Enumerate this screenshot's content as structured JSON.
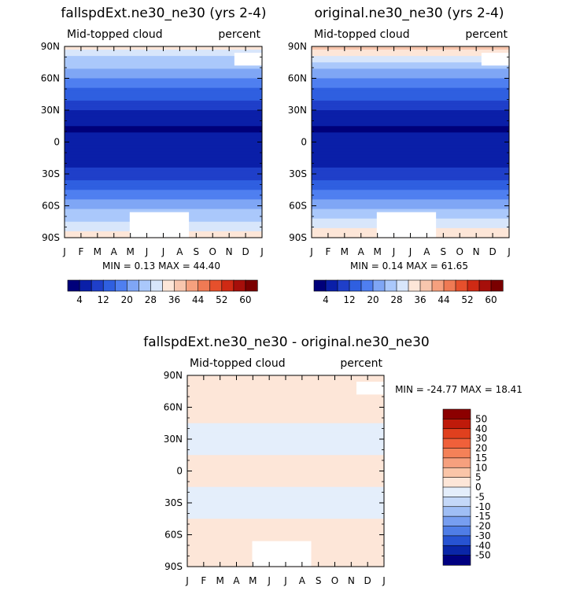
{
  "chart_data": [
    {
      "type": "heatmap",
      "id": "left",
      "title": "fallspdExt.ne30_ne30 (yrs 2-4)",
      "subtitle_left": "Mid-topped cloud",
      "subtitle_right": "percent",
      "x_ticks": [
        "J",
        "F",
        "M",
        "A",
        "M",
        "J",
        "J",
        "A",
        "S",
        "O",
        "N",
        "D",
        "J"
      ],
      "y_ticks": [
        "90N",
        "60N",
        "30N",
        "0",
        "30S",
        "60S",
        "90S"
      ],
      "ylim": [
        -90,
        90
      ],
      "stats": "MIN =    0.13 MAX =   44.40",
      "colorbar_labels": [
        "4",
        "12",
        "20",
        "28",
        "36",
        "44",
        "52",
        "60"
      ],
      "colorbar_colors": [
        "#00007a",
        "#0a1fa8",
        "#1f3fc9",
        "#2f5fe0",
        "#4f7ff0",
        "#7fa6f5",
        "#aac8fb",
        "#d8e6fb",
        "#fde6d8",
        "#f8c6ae",
        "#f6a07e",
        "#ef7a54",
        "#e6502c",
        "#cf2a14",
        "#a60f0a",
        "#7a0000"
      ],
      "band_profile": [
        {
          "lat": 90,
          "value": 34
        },
        {
          "lat": 80,
          "value": 28
        },
        {
          "lat": 70,
          "value": 24
        },
        {
          "lat": 60,
          "value": 20
        },
        {
          "lat": 50,
          "value": 15
        },
        {
          "lat": 40,
          "value": 12
        },
        {
          "lat": 30,
          "value": 8
        },
        {
          "lat": 20,
          "value": 5
        },
        {
          "lat": 10,
          "value": 3
        },
        {
          "lat": 0,
          "value": 7
        },
        {
          "lat": -10,
          "value": 8
        },
        {
          "lat": -20,
          "value": 6
        },
        {
          "lat": -30,
          "value": 10
        },
        {
          "lat": -45,
          "value": 16
        },
        {
          "lat": -60,
          "value": 23
        },
        {
          "lat": -75,
          "value": 28
        },
        {
          "lat": -90,
          "value": 34
        }
      ]
    },
    {
      "type": "heatmap",
      "id": "right",
      "title": "original.ne30_ne30 (yrs 2-4)",
      "subtitle_left": "Mid-topped cloud",
      "subtitle_right": "percent",
      "x_ticks": [
        "J",
        "F",
        "M",
        "A",
        "M",
        "J",
        "J",
        "A",
        "S",
        "O",
        "N",
        "D",
        "J"
      ],
      "y_ticks": [
        "90N",
        "60N",
        "30N",
        "0",
        "30S",
        "60S",
        "90S"
      ],
      "ylim": [
        -90,
        90
      ],
      "stats": "MIN =    0.14 MAX =   61.65",
      "colorbar_labels": [
        "4",
        "12",
        "20",
        "28",
        "36",
        "44",
        "52",
        "60"
      ],
      "colorbar_colors": [
        "#00007a",
        "#0a1fa8",
        "#1f3fc9",
        "#2f5fe0",
        "#4f7ff0",
        "#7fa6f5",
        "#aac8fb",
        "#d8e6fb",
        "#fde6d8",
        "#f8c6ae",
        "#f6a07e",
        "#ef7a54",
        "#e6502c",
        "#cf2a14",
        "#a60f0a",
        "#7a0000"
      ],
      "band_profile": [
        {
          "lat": 90,
          "value": 40
        },
        {
          "lat": 80,
          "value": 30
        },
        {
          "lat": 70,
          "value": 25
        },
        {
          "lat": 60,
          "value": 20
        },
        {
          "lat": 50,
          "value": 15
        },
        {
          "lat": 40,
          "value": 12
        },
        {
          "lat": 30,
          "value": 8
        },
        {
          "lat": 20,
          "value": 5
        },
        {
          "lat": 10,
          "value": 3
        },
        {
          "lat": 0,
          "value": 7
        },
        {
          "lat": -10,
          "value": 8
        },
        {
          "lat": -20,
          "value": 6
        },
        {
          "lat": -30,
          "value": 10
        },
        {
          "lat": -45,
          "value": 16
        },
        {
          "lat": -60,
          "value": 23
        },
        {
          "lat": -75,
          "value": 29
        },
        {
          "lat": -90,
          "value": 35
        }
      ]
    },
    {
      "type": "heatmap",
      "id": "diff",
      "title": "fallspdExt.ne30_ne30 - original.ne30_ne30",
      "subtitle_left": "Mid-topped cloud",
      "subtitle_right": "percent",
      "x_ticks": [
        "J",
        "F",
        "M",
        "A",
        "M",
        "J",
        "J",
        "A",
        "S",
        "O",
        "N",
        "D",
        "J"
      ],
      "y_ticks": [
        "90N",
        "60N",
        "30N",
        "0",
        "30S",
        "60S",
        "90S"
      ],
      "ylim": [
        -90,
        90
      ],
      "stats": "MIN = -24.77 MAX =  18.41",
      "colorbar_labels": [
        "50",
        "40",
        "30",
        "20",
        "15",
        "10",
        "5",
        "0",
        "-5",
        "-10",
        "-15",
        "-20",
        "-30",
        "-40",
        "-50"
      ],
      "colorbar_colors": [
        "#8c0000",
        "#bf1a0a",
        "#e0401e",
        "#f0603a",
        "#f48158",
        "#f6a07e",
        "#fac5a8",
        "#fde6d8",
        "#e4eefb",
        "#c4d8f8",
        "#9fbef5",
        "#779ef0",
        "#4f7de6",
        "#2753d2",
        "#0a26a8",
        "#000080"
      ],
      "band_profile": [
        {
          "lat": 90,
          "value": 2
        },
        {
          "lat": 60,
          "value": 1
        },
        {
          "lat": 30,
          "value": -1
        },
        {
          "lat": 0,
          "value": 1
        },
        {
          "lat": -30,
          "value": -1
        },
        {
          "lat": -60,
          "value": 1
        },
        {
          "lat": -90,
          "value": 2
        }
      ]
    }
  ]
}
